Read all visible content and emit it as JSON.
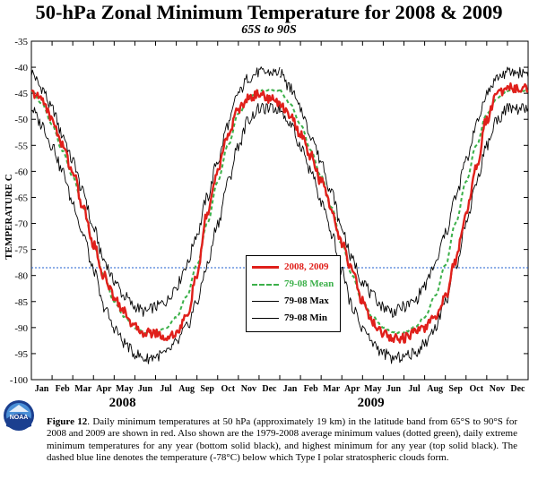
{
  "page": {
    "title": "50-hPa Zonal Minimum Temperature for 2008 & 2009",
    "subtitle": "65S to 90S",
    "caption_label": "Figure 12",
    "caption_text": ". Daily minimum temperatures at 50 hPa (approximately 19 km) in the latitude band from 65°S to 90°S for 2008 and 2009 are shown in red.  Also shown are the 1979-2008 average minimum values (dotted green), daily extreme minimum temperatures for any year (bottom solid black), and highest minimum for any year (top solid black).  The dashed blue line denotes the temperature (-78°C) below which Type I polar stratospheric clouds form.",
    "logo_text": "NOAA"
  },
  "chart_data": {
    "type": "line",
    "title": "50-hPa Zonal Minimum Temperature for 2008 & 2009",
    "subtitle": "65S to 90S",
    "ylabel": "TEMPERATURE C",
    "xlabel": "",
    "ylim": [
      -100,
      -35
    ],
    "yticks": [
      -35,
      -40,
      -45,
      -50,
      -55,
      -60,
      -65,
      -70,
      -75,
      -80,
      -85,
      -90,
      -95,
      -100
    ],
    "x_month_labels": [
      "Jan",
      "Feb",
      "Mar",
      "Apr",
      "May",
      "Jun",
      "Jul",
      "Aug",
      "Sep",
      "Oct",
      "Nov",
      "Dec",
      "Jan",
      "Feb",
      "Mar",
      "Apr",
      "May",
      "Jun",
      "Jul",
      "Aug",
      "Sep",
      "Oct",
      "Nov",
      "Dec"
    ],
    "year_labels": [
      "2008",
      "2009"
    ],
    "x_unit": "month index (0 = start of Jan 2008, 24 = end of Dec 2009)",
    "grid": false,
    "legend_position": "center-right",
    "reference_line": {
      "value": -78.5,
      "style": "dotted",
      "color": "#1f5fcf"
    },
    "series": [
      {
        "name": "79-08 Max",
        "color": "#000000",
        "style": "thin-solid",
        "x": [
          0,
          0.5,
          1,
          1.5,
          2,
          2.5,
          3,
          3.5,
          4,
          4.5,
          5,
          5.5,
          6,
          6.5,
          7,
          7.5,
          8,
          8.5,
          9,
          9.5,
          10,
          10.5,
          11,
          11.5,
          12
        ],
        "y": [
          -41,
          -44,
          -48,
          -53,
          -58,
          -64,
          -71,
          -77,
          -81,
          -84,
          -86,
          -87,
          -86,
          -85,
          -82,
          -78,
          -72,
          -65,
          -58,
          -51,
          -45,
          -42,
          -41,
          -41,
          -41
        ]
      },
      {
        "name": "79-08 Mean",
        "color": "#3cb04a",
        "style": "dashed",
        "x": [
          0,
          0.5,
          1,
          1.5,
          2,
          2.5,
          3,
          3.5,
          4,
          4.5,
          5,
          5.5,
          6,
          6.5,
          7,
          7.5,
          8,
          8.5,
          9,
          9.5,
          10,
          10.5,
          11,
          11.5,
          12
        ],
        "y": [
          -44.5,
          -47,
          -51,
          -56,
          -61,
          -67,
          -74,
          -80,
          -85,
          -88,
          -90,
          -91,
          -91,
          -90,
          -88,
          -84,
          -78,
          -70,
          -62,
          -55,
          -49,
          -46,
          -44.5,
          -44.5,
          -44.5
        ]
      },
      {
        "name": "79-08 Min",
        "color": "#000000",
        "style": "thin-solid",
        "x": [
          0,
          0.5,
          1,
          1.5,
          2,
          2.5,
          3,
          3.5,
          4,
          4.5,
          5,
          5.5,
          6,
          6.5,
          7,
          7.5,
          8,
          8.5,
          9,
          9.5,
          10,
          10.5,
          11,
          11.5,
          12
        ],
        "y": [
          -48,
          -51,
          -55,
          -60,
          -66,
          -72,
          -79,
          -86,
          -90,
          -93,
          -95,
          -96,
          -95.5,
          -95,
          -93,
          -90,
          -85,
          -78,
          -70,
          -62,
          -55,
          -50,
          -48,
          -48,
          -48
        ]
      },
      {
        "name": "2008, 2009",
        "color": "#e0201b",
        "style": "thick-solid",
        "x": [
          0,
          0.5,
          1,
          1.5,
          2,
          2.5,
          3,
          3.5,
          4,
          4.5,
          5,
          5.5,
          6,
          6.5,
          7,
          7.5,
          8,
          8.5,
          9,
          9.5,
          10,
          10.5,
          11,
          11.5,
          12,
          12.5,
          13,
          13.5,
          14,
          14.5,
          15,
          15.5,
          16,
          16.5,
          17,
          17.5,
          18,
          18.5,
          19,
          19.5,
          20,
          20.5,
          21,
          21.5,
          22,
          22.5,
          23,
          23.5,
          24
        ],
        "y": [
          -45,
          -46,
          -50,
          -55,
          -60,
          -67,
          -74,
          -80,
          -84,
          -87,
          -90,
          -91,
          -91,
          -92,
          -91,
          -88,
          -80,
          -68,
          -60,
          -53,
          -48,
          -46,
          -45,
          -46,
          -47,
          -49,
          -53,
          -57,
          -62,
          -67,
          -74,
          -79,
          -85,
          -89,
          -91,
          -92,
          -92,
          -91,
          -90,
          -88,
          -84,
          -77,
          -68,
          -59,
          -50,
          -45,
          -44,
          -44,
          -44
        ]
      }
    ]
  }
}
